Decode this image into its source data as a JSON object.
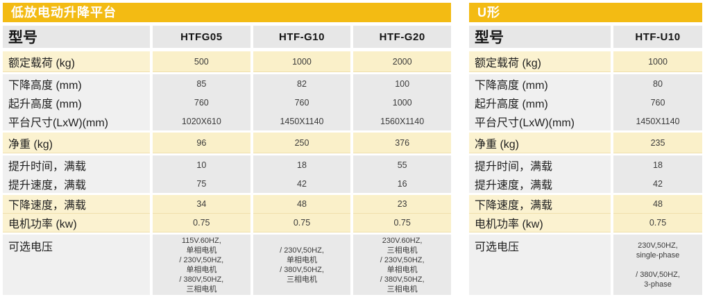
{
  "colors": {
    "accent_gold": "#F3BB13",
    "cream_row": "#FBF2D0",
    "gray_row": "#E9E9E9",
    "header_gray": "#E7E7E7",
    "title_text": "#FFFFFF"
  },
  "tables": [
    {
      "title": "低放电动升降平台",
      "model_header": "型号",
      "models": [
        "HTFG05",
        "HTF-G10",
        "HTF-G20"
      ],
      "bands": [
        {
          "rows": [
            {
              "label": "额定载荷 (kg)",
              "values": [
                "500",
                "1000",
                "2000"
              ]
            }
          ]
        },
        {
          "rows": [
            {
              "label": "下降高度 (mm)",
              "values": [
                "85",
                "82",
                "100"
              ]
            },
            {
              "label": "起升高度 (mm)",
              "values": [
                "760",
                "760",
                "1000"
              ]
            },
            {
              "label": "平台尺寸(LxW)(mm)",
              "values": [
                "1020X610",
                "1450X1140",
                "1560X1140"
              ]
            }
          ]
        },
        {
          "rows": [
            {
              "label": "净重 (kg)",
              "values": [
                "96",
                "250",
                "376"
              ]
            }
          ]
        },
        {
          "rows": [
            {
              "label": "提升时间，满载",
              "values": [
                "10",
                "18",
                "55"
              ]
            },
            {
              "label": "提升速度，满载",
              "values": [
                "75",
                "42",
                "16"
              ]
            }
          ]
        },
        {
          "rows": [
            {
              "label": "下降速度，满载",
              "values": [
                "34",
                "48",
                "23"
              ]
            },
            {
              "label": "电机功率 (kw)",
              "values": [
                "0.75",
                "0.75",
                "0.75"
              ]
            }
          ]
        },
        {
          "rows": [
            {
              "label": "可选电压",
              "values": [
                "115V.60HZ,\n单相电机\n/ 230V,50HZ,\n单相电机\n/ 380V,50HZ,\n三相电机",
                "/ 230V,50HZ,\n单相电机\n/ 380V,50HZ,\n三相电机",
                "230V.60HZ,\n三相电机\n/ 230V,50HZ,\n单相电机\n/ 380V,50HZ,\n三相电机"
              ]
            }
          ]
        }
      ]
    },
    {
      "title": "U形",
      "model_header": "型号",
      "models": [
        "HTF-U10"
      ],
      "bands": [
        {
          "rows": [
            {
              "label": "额定载荷 (kg)",
              "values": [
                "1000"
              ]
            }
          ]
        },
        {
          "rows": [
            {
              "label": "下降高度 (mm)",
              "values": [
                "80"
              ]
            },
            {
              "label": "起升高度 (mm)",
              "values": [
                "760"
              ]
            },
            {
              "label": "平台尺寸(LxW)(mm)",
              "values": [
                "1450X1140"
              ]
            }
          ]
        },
        {
          "rows": [
            {
              "label": "净重 (kg)",
              "values": [
                "235"
              ]
            }
          ]
        },
        {
          "rows": [
            {
              "label": "提升时间，满载",
              "values": [
                "18"
              ]
            },
            {
              "label": "提升速度，满载",
              "values": [
                "42"
              ]
            }
          ]
        },
        {
          "rows": [
            {
              "label": "下降速度，满载",
              "values": [
                "48"
              ]
            },
            {
              "label": "电机功率 (kw)",
              "values": [
                "0.75"
              ]
            }
          ]
        },
        {
          "rows": [
            {
              "label": "可选电压",
              "values": [
                "230V,50HZ,\nsingle-phase\n\n/ 380V,50HZ,\n3-phase"
              ]
            }
          ]
        }
      ]
    }
  ]
}
